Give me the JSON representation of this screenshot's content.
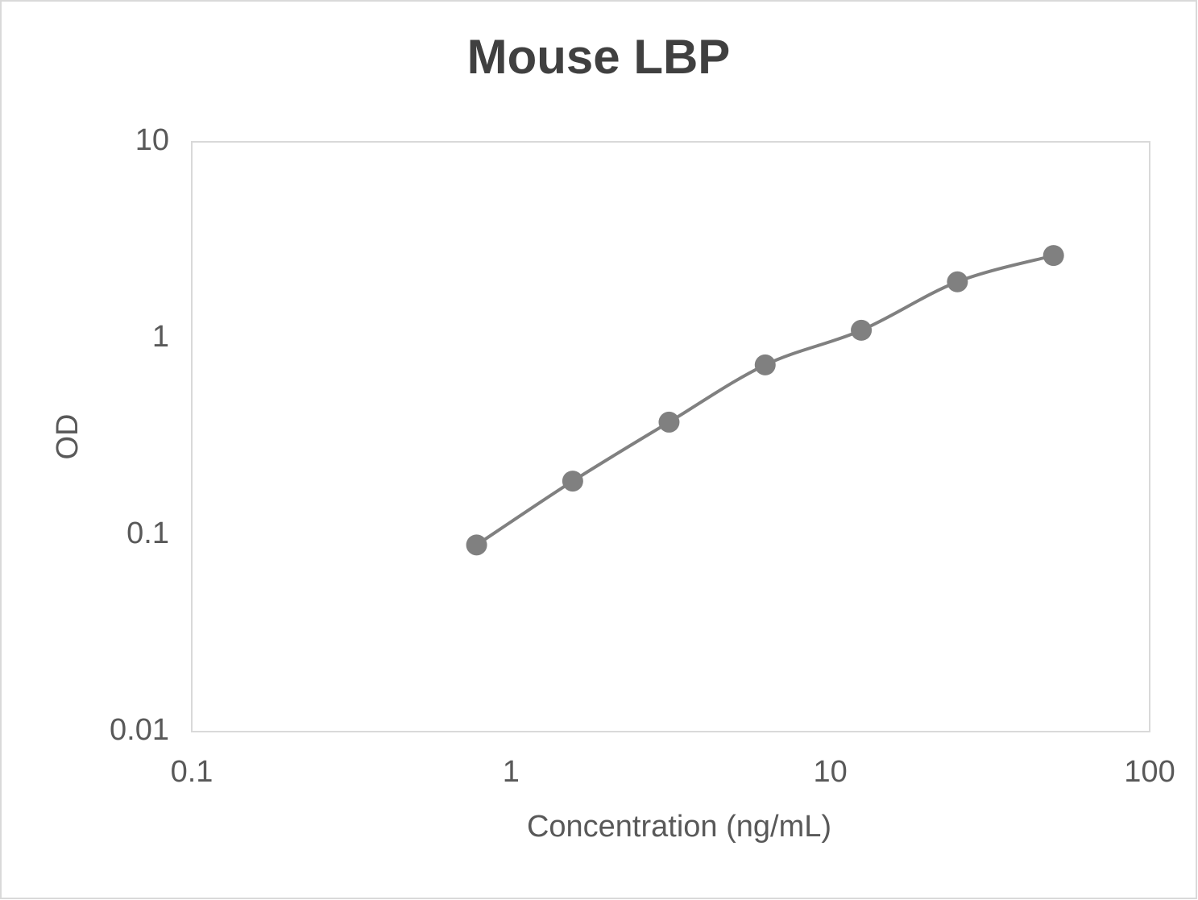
{
  "chart_data": {
    "type": "scatter",
    "title": "Mouse LBP",
    "x_label": "Concentration (ng/mL)",
    "y_label": "OD",
    "x": [
      0.78,
      1.56,
      3.125,
      6.25,
      12.5,
      25,
      50
    ],
    "series": [
      {
        "color": "#808080",
        "values": [
          0.089,
          0.188,
          0.375,
          0.733,
          1.1,
          1.94,
          2.64
        ]
      }
    ],
    "xscale": "log",
    "yscale": "log",
    "xlim": [
      0.1,
      100
    ],
    "ylim": [
      0.01,
      10
    ],
    "xticks": [
      0.1,
      1,
      10,
      100
    ],
    "yticks": [
      0.01,
      0.1,
      1,
      10
    ],
    "smooth": true,
    "grid": false
  }
}
